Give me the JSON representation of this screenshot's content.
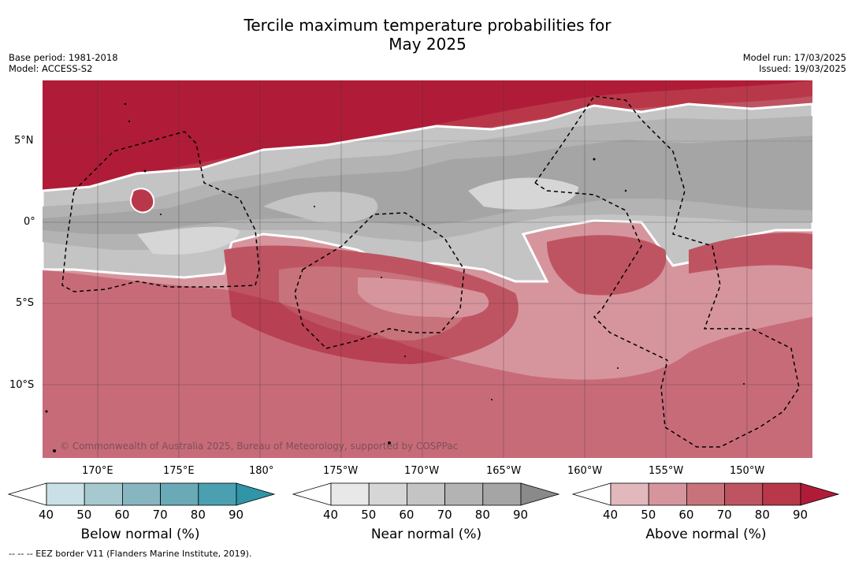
{
  "title_line1": "Tercile maximum temperature probabilities for",
  "title_line2": "May 2025",
  "base_period": "Base period: 1981-2018",
  "model": "Model: ACCESS-S2",
  "model_run": "Model run: 17/03/2025",
  "issued": "Issued: 19/03/2025",
  "lat_labels": [
    "5°N",
    "0°",
    "5°S",
    "10°S"
  ],
  "lon_labels": [
    "170°E",
    "175°E",
    "180°",
    "175°W",
    "170°W",
    "165°W",
    "160°W",
    "155°W",
    "150°W"
  ],
  "copyright": "© Commonwealth of Australia 2025, Bureau of Meteorology, supported by COSPPac",
  "footer": "-- -- -- EEZ border V11 (Flanders Marine Institute, 2019).",
  "colorbars": [
    {
      "label": "Below normal (%)",
      "ticks": [
        "40",
        "50",
        "60",
        "70",
        "80",
        "90"
      ],
      "colors": [
        "#c9e1e6",
        "#a6c9cf",
        "#87b6c0",
        "#6aa9b6",
        "#4a9fb0",
        "#2f95a7"
      ]
    },
    {
      "label": "Near normal (%)",
      "ticks": [
        "40",
        "50",
        "60",
        "70",
        "80",
        "90"
      ],
      "colors": [
        "#e8e8e8",
        "#d6d6d6",
        "#c4c4c4",
        "#b3b3b3",
        "#a5a5a5",
        "#8a8a8a"
      ]
    },
    {
      "label": "Above normal (%)",
      "ticks": [
        "40",
        "50",
        "60",
        "70",
        "80",
        "90"
      ],
      "colors": [
        "#e2b8bd",
        "#d6959c",
        "#c8727c",
        "#be5462",
        "#b8384a",
        "#b01c38"
      ]
    }
  ]
}
